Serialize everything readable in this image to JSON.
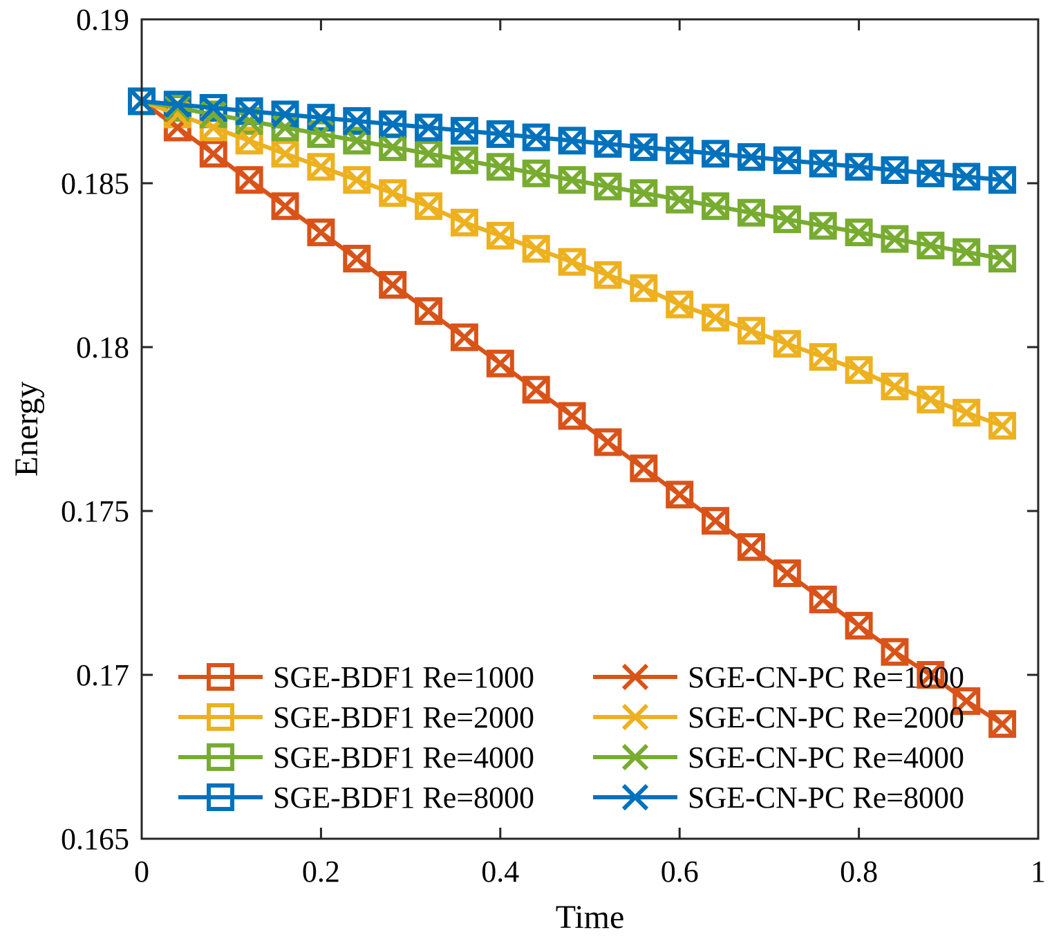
{
  "chart_data": {
    "type": "line",
    "title": "",
    "xlabel": "Time",
    "ylabel": "Energy",
    "xlim": [
      0,
      1
    ],
    "ylim": [
      0.165,
      0.19
    ],
    "xticks": [
      0,
      0.2,
      0.4,
      0.6,
      0.8,
      1
    ],
    "xtick_labels": [
      "0",
      "0.2",
      "0.4",
      "0.6",
      "0.8",
      "1"
    ],
    "yticks": [
      0.165,
      0.17,
      0.175,
      0.18,
      0.185,
      0.19
    ],
    "ytick_labels": [
      "0.165",
      "0.17",
      "0.175",
      "0.18",
      "0.185",
      "0.19"
    ],
    "grid": false,
    "legend_position": "bottom",
    "x": [
      0,
      0.04,
      0.08,
      0.12,
      0.16,
      0.2,
      0.24,
      0.28,
      0.32,
      0.36,
      0.4,
      0.44,
      0.48,
      0.52,
      0.56,
      0.6,
      0.64,
      0.68,
      0.72,
      0.76,
      0.8,
      0.84,
      0.88,
      0.92,
      0.96
    ],
    "series": [
      {
        "name": "SGE-BDF1 Re=1000",
        "color": "#D95319",
        "marker": "square",
        "values": [
          0.1875,
          0.1867,
          0.1859,
          0.1851,
          0.1843,
          0.1835,
          0.1827,
          0.1819,
          0.1811,
          0.1803,
          0.1795,
          0.1787,
          0.1779,
          0.1771,
          0.1763,
          0.1755,
          0.1747,
          0.1739,
          0.1731,
          0.1723,
          0.1715,
          0.1707,
          0.17,
          0.1692,
          0.1685
        ]
      },
      {
        "name": "SGE-BDF1 Re=2000",
        "color": "#EDB120",
        "marker": "square",
        "values": [
          0.1875,
          0.1871,
          0.1867,
          0.1863,
          0.1859,
          0.1855,
          0.1851,
          0.1847,
          0.1843,
          0.1838,
          0.1834,
          0.183,
          0.1826,
          0.1822,
          0.1818,
          0.1813,
          0.1809,
          0.1805,
          0.1801,
          0.1797,
          0.1793,
          0.1788,
          0.1784,
          0.178,
          0.1776
        ]
      },
      {
        "name": "SGE-BDF1 Re=4000",
        "color": "#77AC30",
        "marker": "square",
        "values": [
          0.1875,
          0.1873,
          0.1871,
          0.1869,
          0.1867,
          0.1865,
          0.1863,
          0.1861,
          0.1859,
          0.1857,
          0.1855,
          0.1853,
          0.1851,
          0.1849,
          0.1847,
          0.1845,
          0.1843,
          0.1841,
          0.1839,
          0.1837,
          0.1835,
          0.1833,
          0.1831,
          0.1829,
          0.1827
        ]
      },
      {
        "name": "SGE-BDF1 Re=8000",
        "color": "#0072BD",
        "marker": "square",
        "values": [
          0.1875,
          0.1874,
          0.1873,
          0.1872,
          0.1871,
          0.187,
          0.1869,
          0.1868,
          0.1867,
          0.1866,
          0.1865,
          0.1864,
          0.1863,
          0.1862,
          0.1861,
          0.186,
          0.1859,
          0.1858,
          0.1857,
          0.1856,
          0.1855,
          0.1854,
          0.1853,
          0.1852,
          0.1851
        ]
      },
      {
        "name": "SGE-CN-PC Re=1000",
        "color": "#D95319",
        "marker": "x",
        "values": [
          0.1875,
          0.1867,
          0.1859,
          0.1851,
          0.1843,
          0.1835,
          0.1827,
          0.1819,
          0.1811,
          0.1803,
          0.1795,
          0.1787,
          0.1779,
          0.1771,
          0.1763,
          0.1755,
          0.1747,
          0.1739,
          0.1731,
          0.1723,
          0.1715,
          0.1707,
          0.17,
          0.1692,
          0.1685
        ]
      },
      {
        "name": "SGE-CN-PC Re=2000",
        "color": "#EDB120",
        "marker": "x",
        "values": [
          0.1875,
          0.1871,
          0.1867,
          0.1863,
          0.1859,
          0.1855,
          0.1851,
          0.1847,
          0.1843,
          0.1838,
          0.1834,
          0.183,
          0.1826,
          0.1822,
          0.1818,
          0.1813,
          0.1809,
          0.1805,
          0.1801,
          0.1797,
          0.1793,
          0.1788,
          0.1784,
          0.178,
          0.1776
        ]
      },
      {
        "name": "SGE-CN-PC Re=4000",
        "color": "#77AC30",
        "marker": "x",
        "values": [
          0.1875,
          0.1873,
          0.1871,
          0.1869,
          0.1867,
          0.1865,
          0.1863,
          0.1861,
          0.1859,
          0.1857,
          0.1855,
          0.1853,
          0.1851,
          0.1849,
          0.1847,
          0.1845,
          0.1843,
          0.1841,
          0.1839,
          0.1837,
          0.1835,
          0.1833,
          0.1831,
          0.1829,
          0.1827
        ]
      },
      {
        "name": "SGE-CN-PC Re=8000",
        "color": "#0072BD",
        "marker": "x",
        "values": [
          0.1875,
          0.1874,
          0.1873,
          0.1872,
          0.1871,
          0.187,
          0.1869,
          0.1868,
          0.1867,
          0.1866,
          0.1865,
          0.1864,
          0.1863,
          0.1862,
          0.1861,
          0.186,
          0.1859,
          0.1858,
          0.1857,
          0.1856,
          0.1855,
          0.1854,
          0.1853,
          0.1852,
          0.1851
        ]
      }
    ]
  }
}
